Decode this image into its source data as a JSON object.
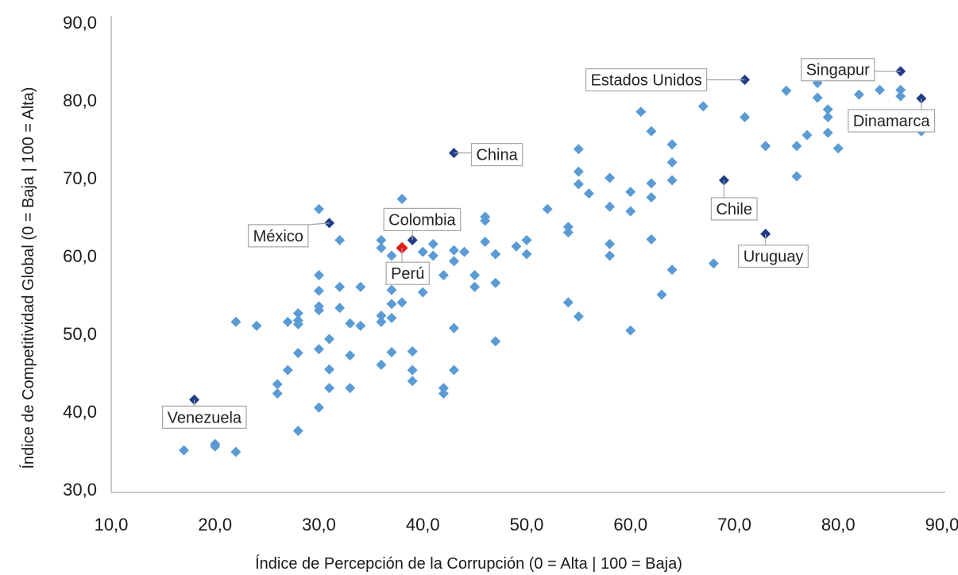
{
  "chart_data": {
    "type": "scatter",
    "xlabel": "Índice de Percepción de la Corrupción (0 = Alta | 100 = Baja)",
    "ylabel": "Índice de Competitividad Global (0 = Baja | 100 = Alta)",
    "xlim": [
      10,
      90
    ],
    "ylim": [
      30,
      90
    ],
    "xticks": [
      "10,0",
      "20,0",
      "30,0",
      "40,0",
      "50,0",
      "60,0",
      "70,0",
      "80,0",
      "90,0"
    ],
    "yticks": [
      "30,0",
      "40,0",
      "50,0",
      "60,0",
      "70,0",
      "80,0",
      "90,0"
    ],
    "grid": false,
    "colors": {
      "points": "#5b9bd5",
      "highlighted": "#1f3c88",
      "peru": "#e31c1c"
    },
    "points": [
      [
        17,
        35
      ],
      [
        20,
        35.5
      ],
      [
        20,
        35.8
      ],
      [
        21,
        40
      ],
      [
        22,
        34.8
      ],
      [
        22,
        51.5
      ],
      [
        24,
        51
      ],
      [
        26,
        43.5
      ],
      [
        26,
        42.3
      ],
      [
        27,
        45.3
      ],
      [
        27,
        51.5
      ],
      [
        28,
        52.6
      ],
      [
        28,
        51.7
      ],
      [
        28,
        51.2
      ],
      [
        28,
        47.5
      ],
      [
        28,
        37.5
      ],
      [
        30,
        66
      ],
      [
        30,
        57.5
      ],
      [
        30,
        55.5
      ],
      [
        30,
        53.5
      ],
      [
        30,
        53
      ],
      [
        30,
        48
      ],
      [
        30,
        40.5
      ],
      [
        31,
        49.3
      ],
      [
        31,
        45.4
      ],
      [
        31,
        43
      ],
      [
        32,
        62
      ],
      [
        32,
        56
      ],
      [
        32,
        53.3
      ],
      [
        33,
        51.3
      ],
      [
        33,
        47.2
      ],
      [
        33,
        43
      ],
      [
        34,
        56
      ],
      [
        34,
        51
      ],
      [
        36,
        62
      ],
      [
        36,
        61
      ],
      [
        36,
        52.3
      ],
      [
        36,
        51.5
      ],
      [
        36,
        46
      ],
      [
        37,
        60
      ],
      [
        37,
        55.6
      ],
      [
        37,
        53.8
      ],
      [
        37,
        52
      ],
      [
        37,
        47.6
      ],
      [
        38,
        67.3
      ],
      [
        38,
        54
      ],
      [
        39,
        47.7
      ],
      [
        39,
        45.3
      ],
      [
        39,
        43.9
      ],
      [
        40,
        60.5
      ],
      [
        40,
        55.3
      ],
      [
        41,
        61.5
      ],
      [
        41,
        60
      ],
      [
        42,
        57.5
      ],
      [
        42,
        43
      ],
      [
        42,
        42.3
      ],
      [
        43,
        60.7
      ],
      [
        43,
        59.3
      ],
      [
        43,
        50.7
      ],
      [
        43,
        45.3
      ],
      [
        44,
        60.5
      ],
      [
        45,
        57.5
      ],
      [
        45,
        56
      ],
      [
        46,
        65
      ],
      [
        46,
        64.5
      ],
      [
        46,
        61.8
      ],
      [
        47,
        60.2
      ],
      [
        47,
        56.5
      ],
      [
        47,
        49
      ],
      [
        49,
        61.2
      ],
      [
        50,
        62
      ],
      [
        50,
        60.2
      ],
      [
        52,
        66
      ],
      [
        54,
        63.7
      ],
      [
        54,
        63
      ],
      [
        54,
        54
      ],
      [
        55,
        73.7
      ],
      [
        55,
        70.8
      ],
      [
        55,
        69.2
      ],
      [
        55,
        52.2
      ],
      [
        56,
        68
      ],
      [
        58,
        70
      ],
      [
        58,
        66.3
      ],
      [
        58,
        61.5
      ],
      [
        58,
        60
      ],
      [
        60,
        68.2
      ],
      [
        60,
        65.7
      ],
      [
        60,
        50.4
      ],
      [
        61,
        78.5
      ],
      [
        62,
        76
      ],
      [
        62,
        69.3
      ],
      [
        62,
        67.5
      ],
      [
        62,
        62.1
      ],
      [
        63,
        55
      ],
      [
        64,
        74.3
      ],
      [
        64,
        72
      ],
      [
        64,
        69.7
      ],
      [
        64,
        58.2
      ],
      [
        67,
        79.2
      ],
      [
        68,
        59
      ],
      [
        71,
        77.8
      ],
      [
        73,
        74.1
      ],
      [
        75,
        81.2
      ],
      [
        76,
        74.1
      ],
      [
        76,
        70.2
      ],
      [
        77,
        75.5
      ],
      [
        78,
        82.2
      ],
      [
        78,
        80.3
      ],
      [
        79,
        78.8
      ],
      [
        79,
        77.8
      ],
      [
        79,
        75.8
      ],
      [
        80,
        73.8
      ],
      [
        82,
        80.7
      ],
      [
        82,
        76.5
      ],
      [
        84,
        81.3
      ],
      [
        86,
        81.3
      ],
      [
        86,
        80.5
      ],
      [
        88,
        76
      ]
    ],
    "highlighted": [
      {
        "label": "Venezuela",
        "x": 18,
        "y": 41.5
      },
      {
        "label": "México",
        "x": 31,
        "y": 64.2
      },
      {
        "label": "China",
        "x": 43,
        "y": 73.2
      },
      {
        "label": "Colombia",
        "x": 39,
        "y": 62
      },
      {
        "label": "Estados Unidos",
        "x": 71,
        "y": 82.6
      },
      {
        "label": "Singapur",
        "x": 86,
        "y": 83.7
      },
      {
        "label": "Dinamarca",
        "x": 88,
        "y": 80.2
      },
      {
        "label": "Chile",
        "x": 69,
        "y": 69.7
      },
      {
        "label": "Uruguay",
        "x": 73,
        "y": 62.8
      }
    ],
    "peru": {
      "label": "Perú",
      "x": 38,
      "y": 61
    }
  }
}
